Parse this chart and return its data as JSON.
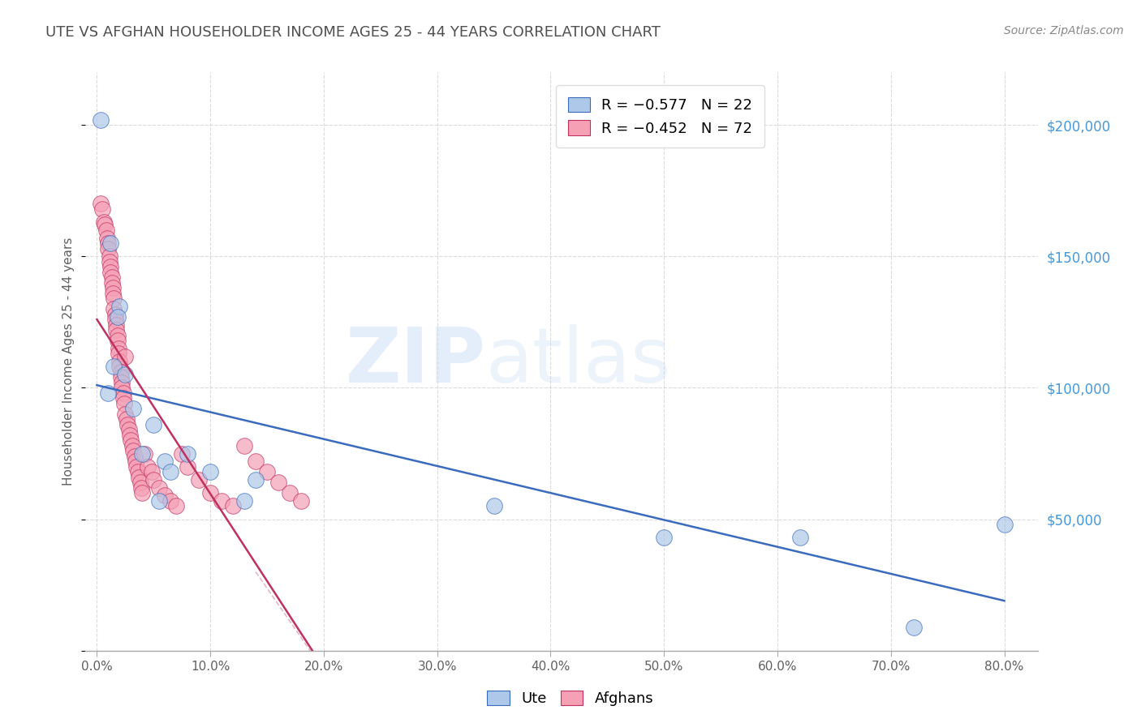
{
  "title": "UTE VS AFGHAN HOUSEHOLDER INCOME AGES 25 - 44 YEARS CORRELATION CHART",
  "source": "Source: ZipAtlas.com",
  "ylabel": "Householder Income Ages 25 - 44 years",
  "xlabel_ticks": [
    "0.0%",
    "10.0%",
    "20.0%",
    "30.0%",
    "40.0%",
    "50.0%",
    "60.0%",
    "70.0%",
    "80.0%"
  ],
  "xlabel_vals": [
    0,
    10,
    20,
    30,
    40,
    50,
    60,
    70,
    80
  ],
  "ylim": [
    0,
    220000
  ],
  "xlim": [
    -1,
    83
  ],
  "ytick_vals": [
    0,
    50000,
    100000,
    150000,
    200000
  ],
  "ytick_labels": [
    "",
    "$50,000",
    "$100,000",
    "$150,000",
    "$200,000"
  ],
  "legend_ute_r": "R = -0.577",
  "legend_ute_n": "N = 22",
  "legend_afghan_r": "R = -0.452",
  "legend_afghan_n": "N = 72",
  "ute_color": "#adc8e8",
  "afghan_color": "#f5a0b5",
  "ute_line_color": "#3a6bbf",
  "afghan_line_color": "#c03060",
  "watermark_zip": "ZIP",
  "watermark_atlas": "atlas",
  "ute_scatter_x": [
    0.3,
    1.2,
    2.0,
    1.5,
    1.8,
    1.0,
    2.5,
    3.2,
    5.0,
    4.0,
    6.0,
    10.0,
    14.0,
    13.0,
    8.0,
    6.5,
    5.5,
    35.0,
    50.0,
    62.0,
    72.0,
    80.0
  ],
  "ute_scatter_y": [
    202000,
    155000,
    131000,
    108000,
    127000,
    98000,
    105000,
    92000,
    86000,
    75000,
    72000,
    68000,
    65000,
    57000,
    75000,
    68000,
    57000,
    55000,
    43000,
    43000,
    9000,
    48000
  ],
  "afghan_scatter_x": [
    0.3,
    0.5,
    0.6,
    0.7,
    0.8,
    0.9,
    1.0,
    1.0,
    1.1,
    1.1,
    1.2,
    1.2,
    1.3,
    1.3,
    1.4,
    1.4,
    1.5,
    1.5,
    1.6,
    1.6,
    1.7,
    1.7,
    1.8,
    1.8,
    1.9,
    1.9,
    2.0,
    2.0,
    2.1,
    2.1,
    2.2,
    2.2,
    2.3,
    2.3,
    2.4,
    2.5,
    2.5,
    2.6,
    2.7,
    2.8,
    2.9,
    3.0,
    3.1,
    3.2,
    3.3,
    3.4,
    3.5,
    3.6,
    3.7,
    3.8,
    3.9,
    4.0,
    4.2,
    4.5,
    4.8,
    5.0,
    5.5,
    6.0,
    6.5,
    7.0,
    7.5,
    8.0,
    9.0,
    10.0,
    11.0,
    12.0,
    13.0,
    14.0,
    15.0,
    16.0,
    17.0,
    18.0
  ],
  "afghan_scatter_y": [
    170000,
    168000,
    163000,
    162000,
    160000,
    157000,
    155000,
    153000,
    150000,
    148000,
    146000,
    144000,
    142000,
    140000,
    138000,
    136000,
    134000,
    130000,
    128000,
    126000,
    124000,
    122000,
    120000,
    118000,
    115000,
    113000,
    110000,
    108000,
    106000,
    104000,
    102000,
    100000,
    98000,
    96000,
    94000,
    112000,
    90000,
    88000,
    86000,
    84000,
    82000,
    80000,
    78000,
    76000,
    74000,
    72000,
    70000,
    68000,
    66000,
    64000,
    62000,
    60000,
    75000,
    70000,
    68000,
    65000,
    62000,
    59000,
    57000,
    55000,
    75000,
    70000,
    65000,
    60000,
    57000,
    55000,
    78000,
    72000,
    68000,
    64000,
    60000,
    57000
  ],
  "background_color": "#ffffff",
  "grid_color": "#cccccc",
  "title_color": "#505050",
  "axis_label_color": "#606060",
  "right_ytick_color": "#4499dd",
  "ute_line_x": [
    0,
    80
  ],
  "ute_line_y": [
    101000,
    19000
  ],
  "afghan_line_x": [
    0,
    19
  ],
  "afghan_line_y": [
    126000,
    0
  ]
}
